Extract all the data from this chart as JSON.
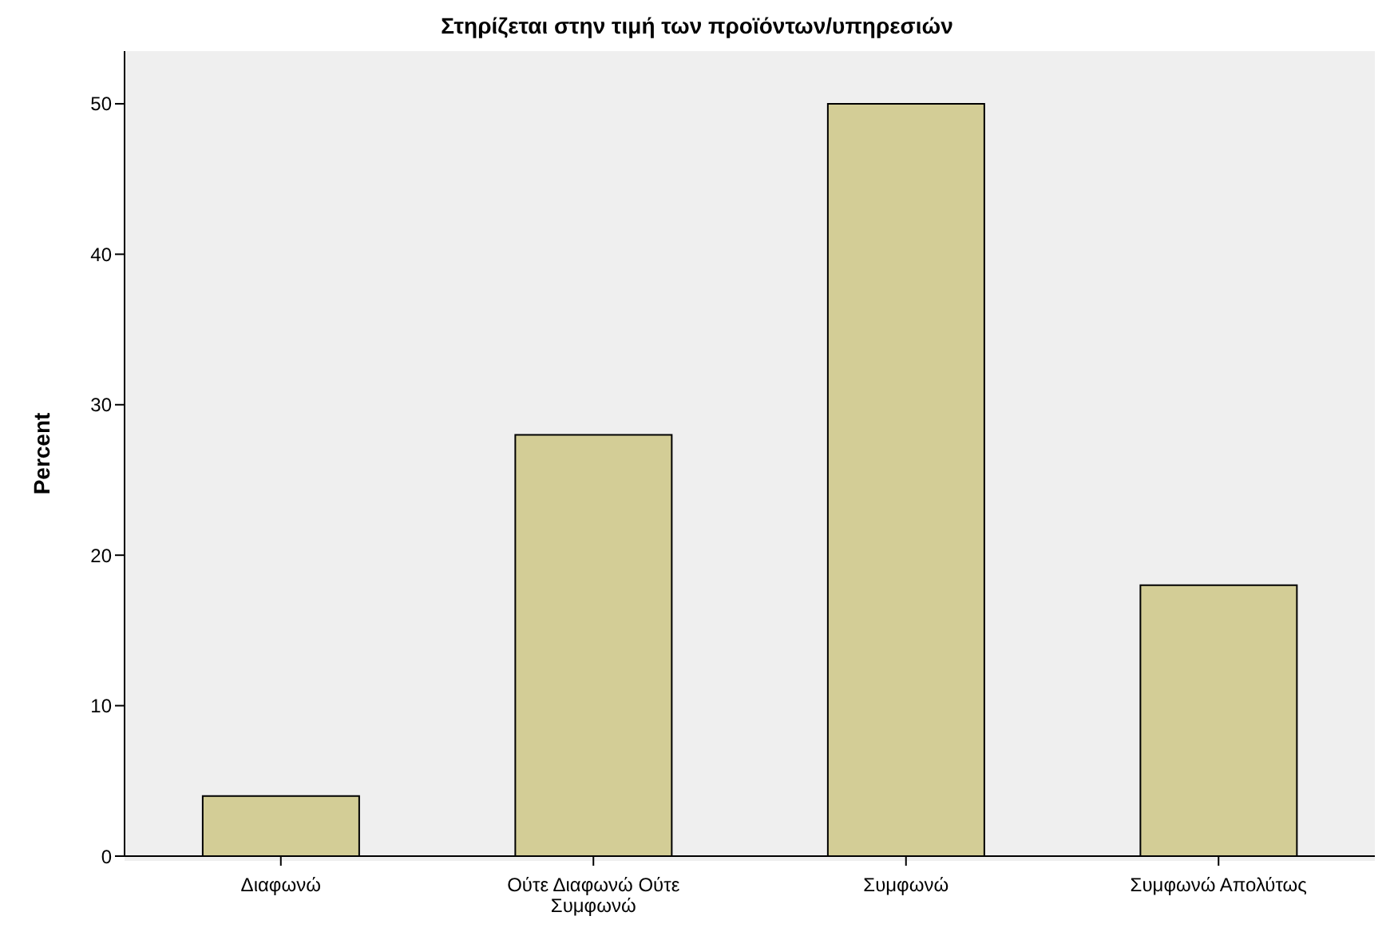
{
  "chart_data": {
    "type": "bar",
    "title": "Στηρίζεται στην τιμή των προϊόντων/υπηρεσιών",
    "ylabel": "Percent",
    "categories": [
      "Διαφωνώ",
      "Ούτε Διαφωνώ Ούτε Συμφωνώ",
      "Συμφωνώ",
      "Συμφωνώ Απολύτως"
    ],
    "values": [
      4,
      28,
      50,
      18
    ],
    "color": "#d3cd96",
    "ylim": [
      0,
      53.5
    ],
    "yticks": [
      0,
      10,
      20,
      30,
      40,
      50
    ],
    "grid": false
  }
}
